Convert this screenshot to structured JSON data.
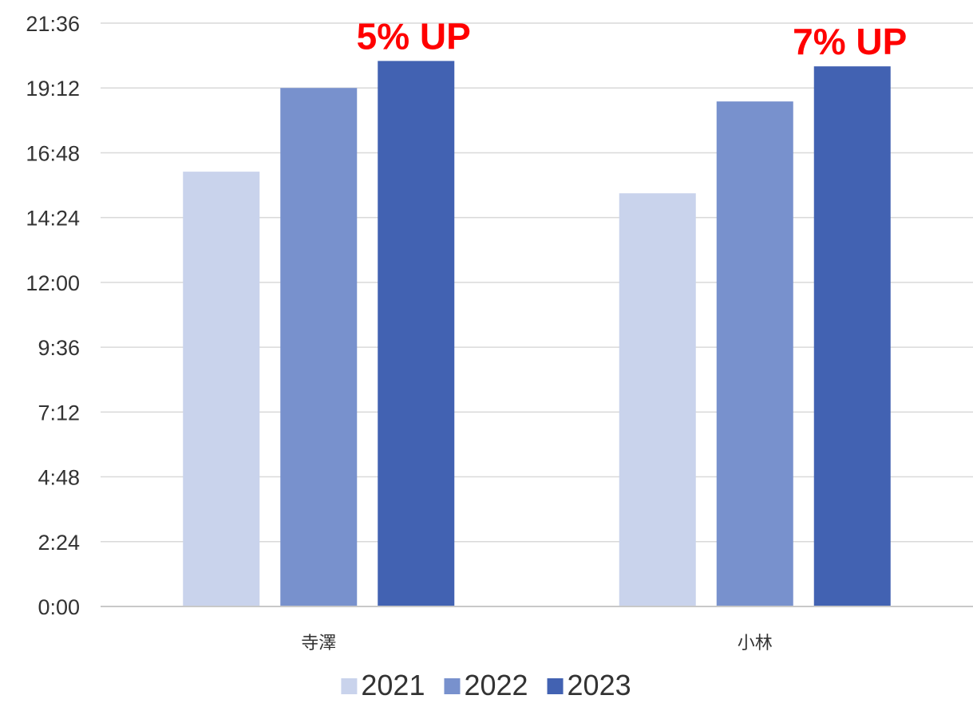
{
  "chart_data": {
    "type": "bar",
    "title": "",
    "xlabel": "",
    "ylabel": "",
    "categories": [
      "寺澤",
      "小林"
    ],
    "series": [
      {
        "name": "2021",
        "values": [
          16.1,
          15.3
        ],
        "color": "#c9d3ec"
      },
      {
        "name": "2022",
        "values": [
          19.2,
          18.7
        ],
        "color": "#7891cd"
      },
      {
        "name": "2023",
        "values": [
          20.2,
          20.0
        ],
        "color": "#4262b2"
      }
    ],
    "value_format": "h:mm",
    "ylim": [
      0,
      21.6
    ],
    "y_ticks": [
      "0:00",
      "2:24",
      "4:48",
      "7:12",
      "9:36",
      "12:00",
      "14:24",
      "16:48",
      "19:12",
      "21:36"
    ],
    "grid": true,
    "legend_position": "bottom",
    "annotations": [
      {
        "category": "寺澤",
        "text": "5% UP",
        "color": "#ff0000"
      },
      {
        "category": "小林",
        "text": "7% UP",
        "color": "#ff0000"
      }
    ]
  }
}
